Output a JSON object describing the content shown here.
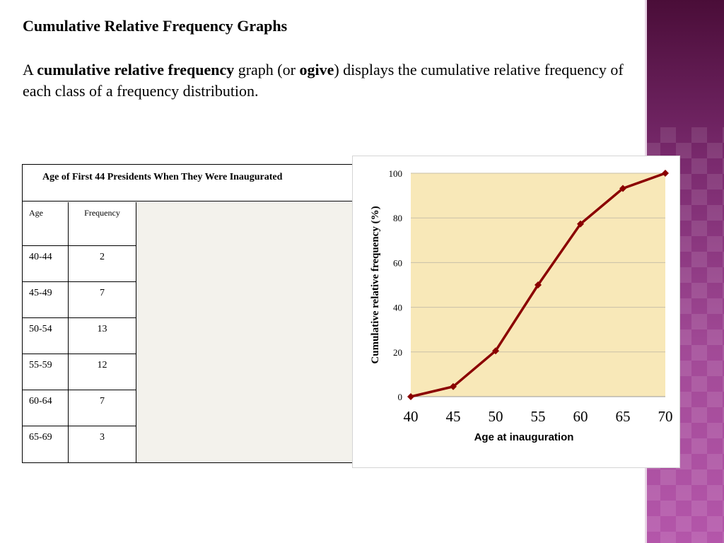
{
  "slide": {
    "heading": "Cumulative Relative Frequency Graphs",
    "intro": {
      "t1": "A ",
      "b1": "cumulative relative frequency",
      "t2": " graph (or ",
      "b2": "ogive",
      "t3": ") displays the cumulative relative frequency of each class of a frequency distribution."
    }
  },
  "table": {
    "caption": "Age of First 44 Presidents When They Were Inaugurated",
    "headers": [
      "Age",
      "Frequency"
    ],
    "rows": [
      [
        "40-44",
        "2"
      ],
      [
        "45-49",
        "7"
      ],
      [
        "50-54",
        "13"
      ],
      [
        "55-59",
        "12"
      ],
      [
        "60-64",
        "7"
      ],
      [
        "65-69",
        "3"
      ]
    ]
  },
  "colors": {
    "plot_background": "#f8e8b8",
    "line": "#8b0000",
    "sidebar": "#8e3a84"
  },
  "chart_data": {
    "type": "line",
    "title": "",
    "xlabel": "Age at inauguration",
    "ylabel": "Cumulative relative frequency (%)",
    "x": [
      40,
      45,
      50,
      55,
      60,
      65,
      70
    ],
    "series": [
      {
        "values": [
          0,
          4.5,
          20.5,
          50,
          77.3,
          93.2,
          100
        ]
      }
    ],
    "xlim": [
      40,
      70
    ],
    "ylim": [
      0,
      100
    ],
    "xticks": [
      40,
      45,
      50,
      55,
      60,
      65,
      70
    ],
    "yticks": [
      0,
      20,
      40,
      60,
      80,
      100
    ],
    "grid": true,
    "legend": "none"
  }
}
